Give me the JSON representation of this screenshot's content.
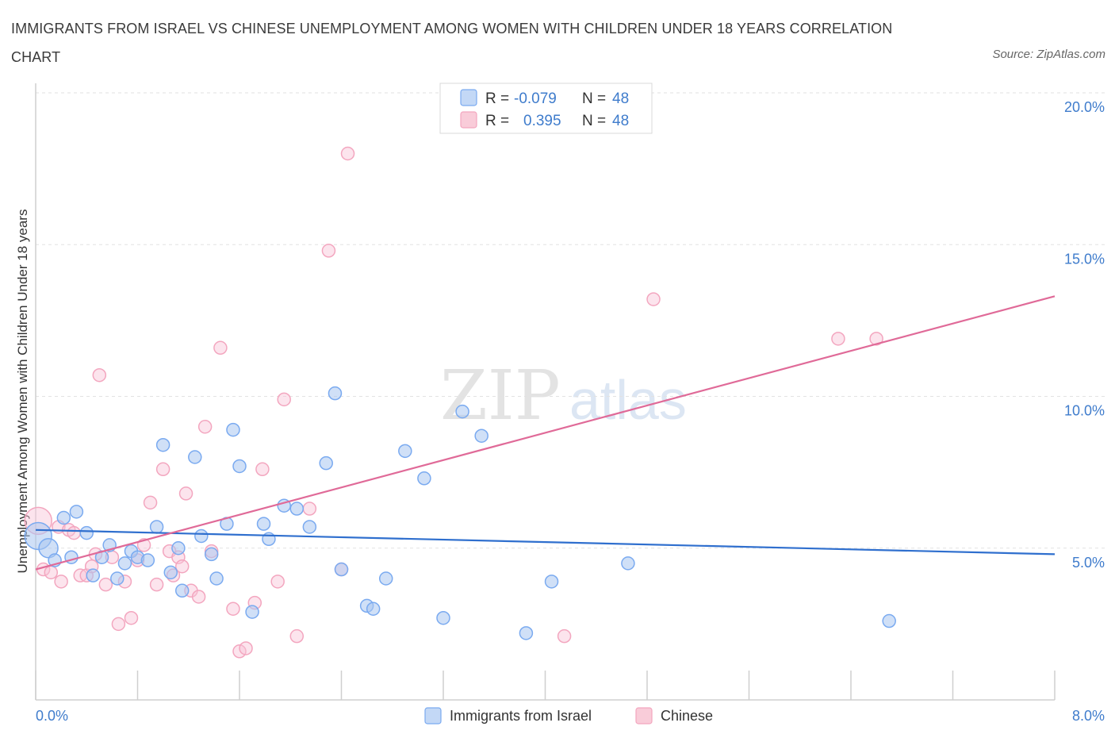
{
  "title": "IMMIGRANTS FROM ISRAEL VS CHINESE UNEMPLOYMENT AMONG WOMEN WITH CHILDREN UNDER 18 YEARS CORRELATION CHART",
  "source": "Source: ZipAtlas.com",
  "watermark": {
    "zip": "ZIP",
    "atlas": "atlas"
  },
  "colors": {
    "israel": "#7aaaf0",
    "israel_line": "#2f6fce",
    "chinese": "#f3a6bf",
    "chinese_line": "#e06a98",
    "axis_text": "#3f7ccc"
  },
  "legend": {
    "r_label": "R =",
    "n_label": "N =",
    "israel_r": "-0.079",
    "israel_n": "48",
    "chinese_r": "0.395",
    "chinese_n": "48"
  },
  "chart_data": {
    "type": "scatter",
    "xlabel": "",
    "ylabel": "Unemployment Among Women with Children Under 18 years",
    "xlim": [
      0,
      8
    ],
    "ylim": [
      0,
      20
    ],
    "x_tick_labels": [
      "0.0%",
      "8.0%"
    ],
    "y_ticks": [
      5,
      10,
      15,
      20
    ],
    "y_tick_labels": [
      "5.0%",
      "10.0%",
      "15.0%",
      "20.0%"
    ],
    "series": [
      {
        "name": "Immigrants from Israel",
        "trend": [
          [
            0.0,
            5.6
          ],
          [
            8.0,
            4.8
          ]
        ],
        "points": [
          [
            0.02,
            5.4
          ],
          [
            0.1,
            5.0
          ],
          [
            0.15,
            4.6
          ],
          [
            0.22,
            6.0
          ],
          [
            0.28,
            4.7
          ],
          [
            0.32,
            6.2
          ],
          [
            0.4,
            5.5
          ],
          [
            0.45,
            4.1
          ],
          [
            0.52,
            4.7
          ],
          [
            0.58,
            5.1
          ],
          [
            0.64,
            4.0
          ],
          [
            0.7,
            4.5
          ],
          [
            0.75,
            4.9
          ],
          [
            0.8,
            4.7
          ],
          [
            0.88,
            4.6
          ],
          [
            0.95,
            5.7
          ],
          [
            1.0,
            8.4
          ],
          [
            1.06,
            4.2
          ],
          [
            1.12,
            5.0
          ],
          [
            1.15,
            3.6
          ],
          [
            1.25,
            8.0
          ],
          [
            1.3,
            5.4
          ],
          [
            1.38,
            4.8
          ],
          [
            1.42,
            4.0
          ],
          [
            1.5,
            5.8
          ],
          [
            1.55,
            8.9
          ],
          [
            1.6,
            7.7
          ],
          [
            1.7,
            2.9
          ],
          [
            1.79,
            5.8
          ],
          [
            1.83,
            5.3
          ],
          [
            1.95,
            6.4
          ],
          [
            2.05,
            6.3
          ],
          [
            2.15,
            5.7
          ],
          [
            2.28,
            7.8
          ],
          [
            2.35,
            10.1
          ],
          [
            2.4,
            4.3
          ],
          [
            2.6,
            3.1
          ],
          [
            2.65,
            3.0
          ],
          [
            2.75,
            4.0
          ],
          [
            2.9,
            8.2
          ],
          [
            3.05,
            7.3
          ],
          [
            3.2,
            2.7
          ],
          [
            3.35,
            9.5
          ],
          [
            3.5,
            8.7
          ],
          [
            3.85,
            2.2
          ],
          [
            4.05,
            3.9
          ],
          [
            4.65,
            4.5
          ],
          [
            6.7,
            2.6
          ]
        ]
      },
      {
        "name": "Chinese",
        "trend": [
          [
            0.0,
            4.3
          ],
          [
            8.0,
            13.3
          ]
        ],
        "points": [
          [
            0.02,
            5.9
          ],
          [
            0.06,
            4.3
          ],
          [
            0.12,
            4.2
          ],
          [
            0.18,
            5.7
          ],
          [
            0.2,
            3.9
          ],
          [
            0.26,
            5.6
          ],
          [
            0.3,
            5.5
          ],
          [
            0.35,
            4.1
          ],
          [
            0.4,
            4.1
          ],
          [
            0.44,
            4.4
          ],
          [
            0.47,
            4.8
          ],
          [
            0.5,
            10.7
          ],
          [
            0.55,
            3.8
          ],
          [
            0.6,
            4.7
          ],
          [
            0.65,
            2.5
          ],
          [
            0.7,
            3.9
          ],
          [
            0.75,
            2.7
          ],
          [
            0.8,
            4.6
          ],
          [
            0.85,
            5.1
          ],
          [
            0.9,
            6.5
          ],
          [
            0.95,
            3.8
          ],
          [
            1.0,
            7.6
          ],
          [
            1.05,
            4.9
          ],
          [
            1.08,
            4.1
          ],
          [
            1.12,
            4.7
          ],
          [
            1.15,
            4.4
          ],
          [
            1.18,
            6.8
          ],
          [
            1.22,
            3.6
          ],
          [
            1.28,
            3.4
          ],
          [
            1.33,
            9.0
          ],
          [
            1.38,
            4.9
          ],
          [
            1.45,
            11.6
          ],
          [
            1.55,
            3.0
          ],
          [
            1.6,
            1.6
          ],
          [
            1.65,
            1.7
          ],
          [
            1.72,
            3.2
          ],
          [
            1.78,
            7.6
          ],
          [
            1.9,
            3.9
          ],
          [
            1.95,
            9.9
          ],
          [
            2.05,
            2.1
          ],
          [
            2.15,
            6.3
          ],
          [
            2.3,
            14.8
          ],
          [
            2.4,
            4.3
          ],
          [
            2.45,
            18.0
          ],
          [
            4.15,
            2.1
          ],
          [
            4.85,
            13.2
          ],
          [
            6.3,
            11.9
          ],
          [
            6.6,
            11.9
          ]
        ]
      }
    ]
  }
}
